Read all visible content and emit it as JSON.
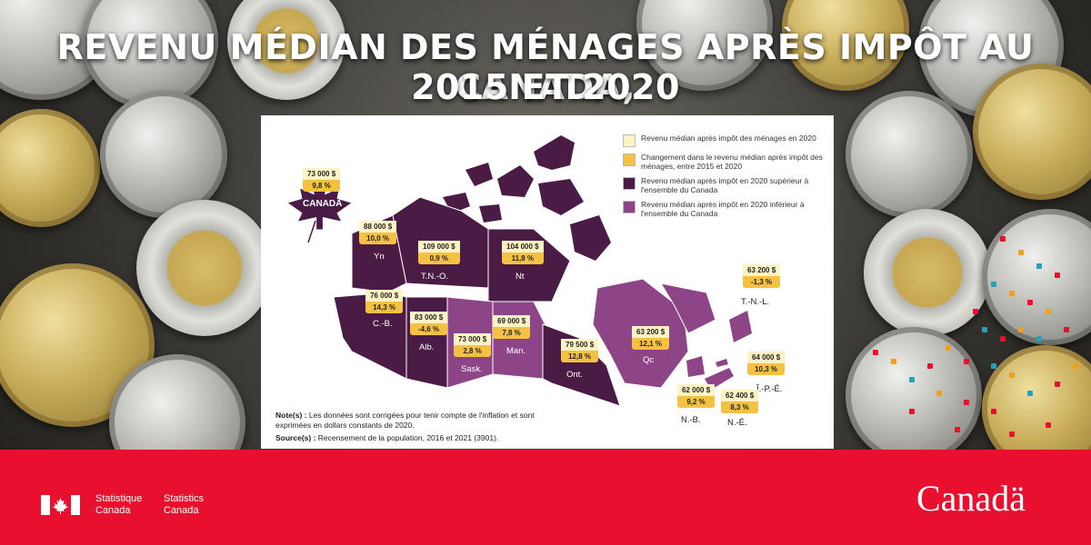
{
  "title": {
    "line1": "REVENU MÉDIAN DES MÉNAGES APRÈS IMPÔT AU CANADA,",
    "line2": "2015 ET 2020"
  },
  "legend": {
    "items": [
      {
        "label": "Revenu médian après impôt des ménages en 2020",
        "color": "#fdf3c4"
      },
      {
        "label": "Changement dans le revenu médian après impôt des ménages, entre 2015 et 2020",
        "color": "#f5c142"
      },
      {
        "label": "Revenu médian après impôt en 2020 supérieur à l'ensemble du Canada",
        "color": "#4a1c45"
      },
      {
        "label": "Revenu médian après impôt en 2020 inférieur à l'ensemble du Canada",
        "color": "#8e4587"
      }
    ]
  },
  "canada": {
    "name": "CANADA",
    "value": "73 000 $",
    "change": "9,8 %"
  },
  "regions": [
    {
      "abbr": "Yn",
      "value": "88 000 $",
      "change": "10,0 %",
      "above": true
    },
    {
      "abbr": "T.N.-O.",
      "value": "109 000 $",
      "change": "0,9 %",
      "above": true
    },
    {
      "abbr": "Nt",
      "value": "104 000 $",
      "change": "11,8 %",
      "above": true
    },
    {
      "abbr": "C.-B.",
      "value": "76 000 $",
      "change": "14,3 %",
      "above": true
    },
    {
      "abbr": "Alb.",
      "value": "83 000 $",
      "change": "-4,6 %",
      "above": true
    },
    {
      "abbr": "Sask.",
      "value": "73 000 $",
      "change": "2,8 %",
      "above": false
    },
    {
      "abbr": "Man.",
      "value": "69 000 $",
      "change": "7,8 %",
      "above": false
    },
    {
      "abbr": "Ont.",
      "value": "79 500 $",
      "change": "12,8 %",
      "above": true
    },
    {
      "abbr": "Qc",
      "value": "63 200 $",
      "change": "12,1 %",
      "above": false
    },
    {
      "abbr": "T.-N.-L.",
      "value": "63 200 $",
      "change": "-1,3 %",
      "above": false
    },
    {
      "abbr": "Î.-P.-É.",
      "value": "64 000 $",
      "change": "10,3 %",
      "above": false
    },
    {
      "abbr": "N.-B.",
      "value": "62 000 $",
      "change": "9,2 %",
      "above": false
    },
    {
      "abbr": "N.-É.",
      "value": "62 400 $",
      "change": "8,3 %",
      "above": false
    }
  ],
  "notes": {
    "note_label": "Note(s) :",
    "note_text": "Les données sont corrigées pour tenir compte de l'inflation et sont exprimées en dollars constants de 2020.",
    "source_label": "Source(s) :",
    "source_text": "Recensement de la population, 2016 et 2021 (3901)."
  },
  "footer": {
    "statcan_fr_1": "Statistique",
    "statcan_fr_2": "Canada",
    "statcan_en_1": "Statistics",
    "statcan_en_2": "Canada",
    "wordmark": "Canadä"
  },
  "colors": {
    "above": "#4a1c45",
    "below": "#8e4587",
    "footer_red": "#e8102e"
  }
}
